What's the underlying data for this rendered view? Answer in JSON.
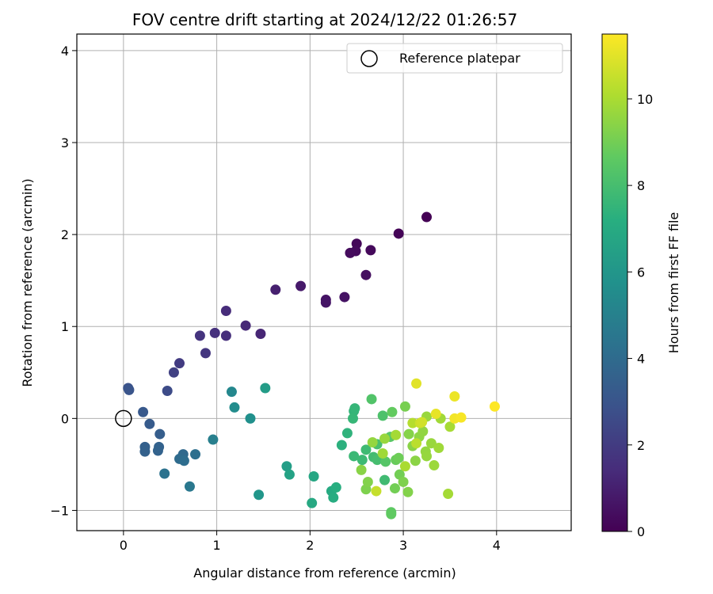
{
  "chart_data": {
    "type": "scatter",
    "title": "FOV centre drift starting at 2024/12/22 01:26:57",
    "xlabel": "Angular distance from reference (arcmin)",
    "ylabel": "Rotation from reference (arcmin)",
    "xlim": [
      -0.5,
      4.8
    ],
    "ylim": [
      -1.22,
      4.18
    ],
    "xticks": [
      0,
      1,
      2,
      3,
      4
    ],
    "yticks": [
      -1,
      0,
      1,
      2,
      3,
      4
    ],
    "grid": true,
    "legend": {
      "location": "top-right",
      "entries": [
        "Reference platepar"
      ]
    },
    "reference_point": {
      "x": 0,
      "y": 0,
      "label": "Reference platepar"
    },
    "colorbar": {
      "label": "Hours from first FF file",
      "colormap": "viridis",
      "range": [
        0,
        11.5
      ],
      "ticks": [
        0,
        2,
        4,
        6,
        8,
        10
      ]
    },
    "points": [
      {
        "x": 3.25,
        "y": 2.19,
        "c": 0.0
      },
      {
        "x": 2.95,
        "y": 2.01,
        "c": 0.1
      },
      {
        "x": 2.5,
        "y": 1.9,
        "c": 0.2
      },
      {
        "x": 2.65,
        "y": 1.83,
        "c": 0.25
      },
      {
        "x": 2.49,
        "y": 1.82,
        "c": 0.3
      },
      {
        "x": 2.43,
        "y": 1.8,
        "c": 0.35
      },
      {
        "x": 2.6,
        "y": 1.56,
        "c": 0.45
      },
      {
        "x": 2.37,
        "y": 1.32,
        "c": 0.55
      },
      {
        "x": 2.17,
        "y": 1.29,
        "c": 0.6
      },
      {
        "x": 2.17,
        "y": 1.26,
        "c": 0.65
      },
      {
        "x": 1.9,
        "y": 1.44,
        "c": 0.8
      },
      {
        "x": 1.63,
        "y": 1.4,
        "c": 1.0
      },
      {
        "x": 1.47,
        "y": 0.92,
        "c": 1.2
      },
      {
        "x": 1.31,
        "y": 1.01,
        "c": 1.3
      },
      {
        "x": 1.1,
        "y": 1.17,
        "c": 1.4
      },
      {
        "x": 1.1,
        "y": 0.9,
        "c": 1.5
      },
      {
        "x": 0.98,
        "y": 0.93,
        "c": 1.6
      },
      {
        "x": 0.82,
        "y": 0.9,
        "c": 1.7
      },
      {
        "x": 0.88,
        "y": 0.71,
        "c": 1.8
      },
      {
        "x": 0.6,
        "y": 0.6,
        "c": 2.0
      },
      {
        "x": 0.54,
        "y": 0.5,
        "c": 2.2
      },
      {
        "x": 0.47,
        "y": 0.3,
        "c": 2.6
      },
      {
        "x": 0.05,
        "y": 0.33,
        "c": 2.9
      },
      {
        "x": 0.06,
        "y": 0.31,
        "c": 3.0
      },
      {
        "x": 0.21,
        "y": 0.07,
        "c": 3.2
      },
      {
        "x": 0.28,
        "y": -0.06,
        "c": 3.3
      },
      {
        "x": 0.39,
        "y": -0.17,
        "c": 3.4
      },
      {
        "x": 0.23,
        "y": -0.31,
        "c": 3.5
      },
      {
        "x": 0.23,
        "y": -0.36,
        "c": 3.55
      },
      {
        "x": 0.38,
        "y": -0.31,
        "c": 3.6
      },
      {
        "x": 0.37,
        "y": -0.35,
        "c": 3.65
      },
      {
        "x": 0.64,
        "y": -0.39,
        "c": 3.9
      },
      {
        "x": 0.6,
        "y": -0.44,
        "c": 4.0
      },
      {
        "x": 0.65,
        "y": -0.46,
        "c": 4.1
      },
      {
        "x": 0.77,
        "y": -0.39,
        "c": 4.2
      },
      {
        "x": 0.44,
        "y": -0.6,
        "c": 4.3
      },
      {
        "x": 0.71,
        "y": -0.74,
        "c": 4.6
      },
      {
        "x": 0.96,
        "y": -0.23,
        "c": 4.9
      },
      {
        "x": 1.16,
        "y": 0.29,
        "c": 5.3
      },
      {
        "x": 1.19,
        "y": 0.12,
        "c": 5.5
      },
      {
        "x": 1.36,
        "y": 0.0,
        "c": 5.7
      },
      {
        "x": 1.52,
        "y": 0.33,
        "c": 6.3
      },
      {
        "x": 1.45,
        "y": -0.83,
        "c": 6.0
      },
      {
        "x": 1.75,
        "y": -0.52,
        "c": 6.4
      },
      {
        "x": 1.78,
        "y": -0.61,
        "c": 6.6
      },
      {
        "x": 2.04,
        "y": -0.63,
        "c": 6.8
      },
      {
        "x": 2.02,
        "y": -0.92,
        "c": 6.9
      },
      {
        "x": 2.23,
        "y": -0.79,
        "c": 7.0
      },
      {
        "x": 2.25,
        "y": -0.86,
        "c": 7.1
      },
      {
        "x": 2.28,
        "y": -0.75,
        "c": 7.2
      },
      {
        "x": 2.34,
        "y": -0.29,
        "c": 7.3
      },
      {
        "x": 2.4,
        "y": -0.16,
        "c": 7.4
      },
      {
        "x": 2.47,
        "y": 0.08,
        "c": 7.5
      },
      {
        "x": 2.48,
        "y": 0.11,
        "c": 7.55
      },
      {
        "x": 2.46,
        "y": 0.0,
        "c": 7.6
      },
      {
        "x": 2.47,
        "y": -0.41,
        "c": 7.7
      },
      {
        "x": 2.56,
        "y": -0.45,
        "c": 7.75
      },
      {
        "x": 2.6,
        "y": -0.34,
        "c": 7.8
      },
      {
        "x": 2.68,
        "y": -0.42,
        "c": 7.9
      },
      {
        "x": 2.72,
        "y": -0.45,
        "c": 8.0
      },
      {
        "x": 2.8,
        "y": -0.67,
        "c": 7.85
      },
      {
        "x": 2.72,
        "y": -0.28,
        "c": 8.1
      },
      {
        "x": 2.78,
        "y": 0.03,
        "c": 8.2
      },
      {
        "x": 2.66,
        "y": 0.21,
        "c": 8.3
      },
      {
        "x": 2.81,
        "y": -0.47,
        "c": 8.4
      },
      {
        "x": 2.86,
        "y": -0.2,
        "c": 8.5
      },
      {
        "x": 2.87,
        "y": -1.02,
        "c": 8.6
      },
      {
        "x": 2.87,
        "y": -1.04,
        "c": 8.65
      },
      {
        "x": 2.88,
        "y": 0.07,
        "c": 8.7
      },
      {
        "x": 2.92,
        "y": -0.45,
        "c": 8.8
      },
      {
        "x": 2.95,
        "y": -0.43,
        "c": 8.9
      },
      {
        "x": 2.96,
        "y": -0.61,
        "c": 9.0
      },
      {
        "x": 3.02,
        "y": 0.13,
        "c": 9.1
      },
      {
        "x": 3.0,
        "y": -0.69,
        "c": 9.2
      },
      {
        "x": 3.05,
        "y": -0.8,
        "c": 9.3
      },
      {
        "x": 3.06,
        "y": -0.17,
        "c": 9.35
      },
      {
        "x": 3.1,
        "y": -0.3,
        "c": 9.4
      },
      {
        "x": 3.13,
        "y": -0.46,
        "c": 9.45
      },
      {
        "x": 3.17,
        "y": -0.2,
        "c": 9.5
      },
      {
        "x": 3.21,
        "y": -0.14,
        "c": 9.55
      },
      {
        "x": 3.24,
        "y": -0.36,
        "c": 9.6
      },
      {
        "x": 3.25,
        "y": -0.41,
        "c": 9.65
      },
      {
        "x": 3.3,
        "y": -0.27,
        "c": 9.7
      },
      {
        "x": 3.33,
        "y": -0.51,
        "c": 9.75
      },
      {
        "x": 3.38,
        "y": -0.32,
        "c": 9.8
      },
      {
        "x": 3.4,
        "y": 0.0,
        "c": 9.85
      },
      {
        "x": 3.48,
        "y": -0.82,
        "c": 9.9
      },
      {
        "x": 3.5,
        "y": -0.09,
        "c": 9.95
      },
      {
        "x": 3.25,
        "y": 0.02,
        "c": 9.7
      },
      {
        "x": 2.91,
        "y": -0.76,
        "c": 9.0
      },
      {
        "x": 2.6,
        "y": -0.77,
        "c": 9.2
      },
      {
        "x": 2.55,
        "y": -0.56,
        "c": 9.4
      },
      {
        "x": 2.67,
        "y": -0.26,
        "c": 9.6
      },
      {
        "x": 2.8,
        "y": -0.22,
        "c": 9.7
      },
      {
        "x": 2.78,
        "y": -0.38,
        "c": 9.8
      },
      {
        "x": 2.92,
        "y": -0.18,
        "c": 9.9
      },
      {
        "x": 3.02,
        "y": -0.52,
        "c": 10.0
      },
      {
        "x": 3.1,
        "y": -0.05,
        "c": 10.2
      },
      {
        "x": 3.14,
        "y": -0.27,
        "c": 10.3
      },
      {
        "x": 2.62,
        "y": -0.69,
        "c": 9.3
      },
      {
        "x": 2.71,
        "y": -0.79,
        "c": 10.5
      },
      {
        "x": 3.18,
        "y": -0.05,
        "c": 10.6
      },
      {
        "x": 3.2,
        "y": -0.04,
        "c": 10.7
      },
      {
        "x": 3.14,
        "y": 0.38,
        "c": 11.0
      },
      {
        "x": 3.35,
        "y": 0.05,
        "c": 11.1
      },
      {
        "x": 3.55,
        "y": 0.24,
        "c": 11.2
      },
      {
        "x": 3.55,
        "y": 0.0,
        "c": 11.3
      },
      {
        "x": 3.62,
        "y": 0.01,
        "c": 11.4
      },
      {
        "x": 3.98,
        "y": 0.13,
        "c": 11.5
      }
    ]
  }
}
